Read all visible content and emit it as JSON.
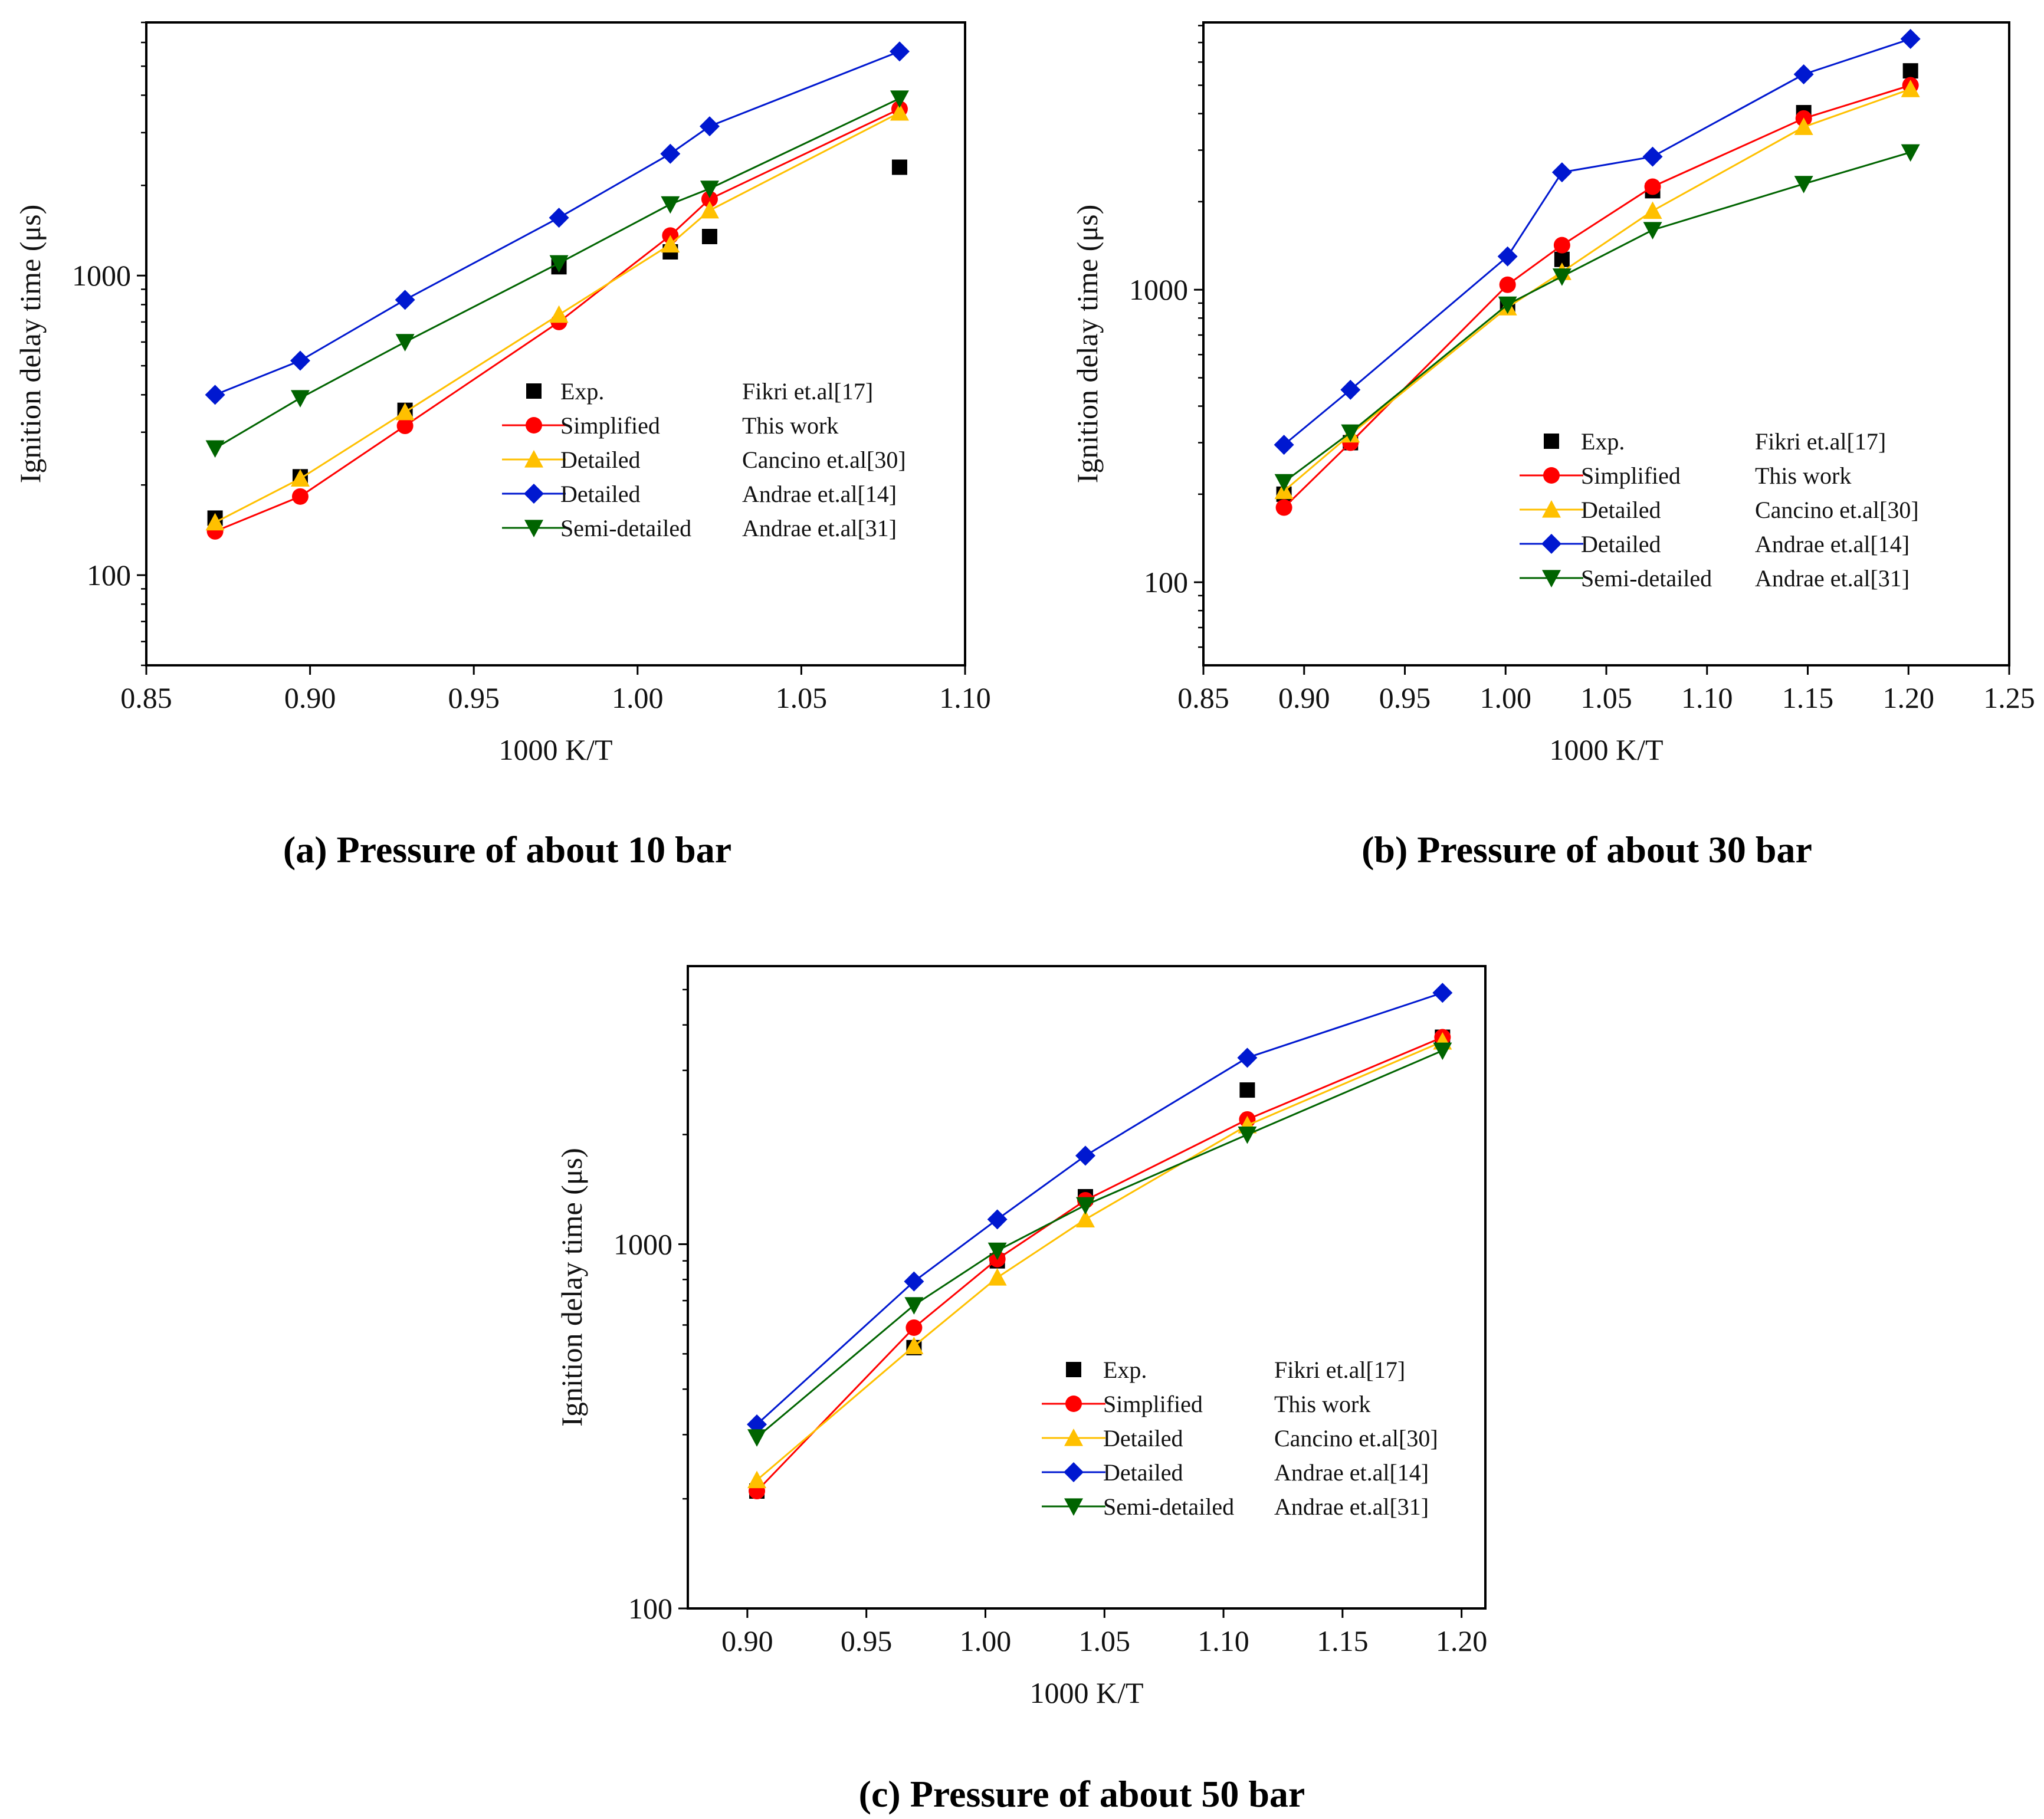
{
  "chart_data": [
    {
      "type": "line",
      "yscale": "log",
      "caption": "(a) Pressure of about 10 bar",
      "xlabel": "1000 K/T",
      "ylabel": "Ignition delay time (μs)",
      "xlim": [
        0.85,
        1.1
      ],
      "ylim": [
        50,
        7000
      ],
      "xticks": [
        "0.85",
        "0.90",
        "0.95",
        "1.00",
        "1.05",
        "1.10"
      ],
      "yticks": [
        "100",
        "1000"
      ],
      "series": [
        {
          "name": "Exp.",
          "source": "Fikri et.al[17]",
          "color": "#000000",
          "marker": "square",
          "line": false,
          "x": [
            0.871,
            0.897,
            0.929,
            0.976,
            1.01,
            1.022,
            1.08
          ],
          "y": [
            155,
            213,
            355,
            1070,
            1200,
            1350,
            2300
          ]
        },
        {
          "name": "Simplified",
          "source": "This work",
          "color": "#ff0000",
          "marker": "circle",
          "line": true,
          "x": [
            0.871,
            0.897,
            0.929,
            0.976,
            1.01,
            1.022,
            1.08
          ],
          "y": [
            140,
            183,
            315,
            700,
            1360,
            1800,
            3600
          ]
        },
        {
          "name": "Detailed",
          "source": "Cancino et.al[30]",
          "color": "#ffc000",
          "marker": "triangle-up",
          "line": true,
          "x": [
            0.871,
            0.897,
            0.929,
            0.976,
            1.01,
            1.022,
            1.08
          ],
          "y": [
            150,
            210,
            350,
            740,
            1270,
            1650,
            3500
          ]
        },
        {
          "name": "Detailed",
          "source": "Andrae et.al[14]",
          "color": "#0018d0",
          "marker": "diamond",
          "line": true,
          "x": [
            0.871,
            0.897,
            0.929,
            0.976,
            1.01,
            1.022,
            1.08
          ],
          "y": [
            400,
            520,
            830,
            1560,
            2550,
            3150,
            5600
          ]
        },
        {
          "name": "Semi-detailed",
          "source": "Andrae et.al[31]",
          "color": "#006400",
          "marker": "triangle-down",
          "line": true,
          "x": [
            0.871,
            0.897,
            0.929,
            0.976,
            1.01,
            1.022,
            1.08
          ],
          "y": [
            265,
            390,
            600,
            1100,
            1730,
            1950,
            3900
          ]
        }
      ]
    },
    {
      "type": "line",
      "yscale": "log",
      "caption": "(b) Pressure of about 30 bar",
      "xlabel": "1000 K/T",
      "ylabel": "Ignition delay time (μs)",
      "xlim": [
        0.85,
        1.25
      ],
      "ylim": [
        52,
        8200
      ],
      "xticks": [
        "0.85",
        "0.90",
        "0.95",
        "1.00",
        "1.05",
        "1.10",
        "1.15",
        "1.20",
        "1.25"
      ],
      "yticks": [
        "100",
        "1000"
      ],
      "series": [
        {
          "name": "Exp.",
          "source": "Fikri et.al[17]",
          "color": "#000000",
          "marker": "square",
          "line": false,
          "x": [
            0.89,
            0.923,
            1.001,
            1.028,
            1.073,
            1.148,
            1.201
          ],
          "y": [
            200,
            300,
            880,
            1270,
            2180,
            4030,
            5600
          ]
        },
        {
          "name": "Simplified",
          "source": "This work",
          "color": "#ff0000",
          "marker": "circle",
          "line": true,
          "x": [
            0.89,
            0.923,
            1.001,
            1.028,
            1.073,
            1.148,
            1.201
          ],
          "y": [
            180,
            300,
            1040,
            1420,
            2250,
            3850,
            5000
          ]
        },
        {
          "name": "Detailed",
          "source": "Cancino et.al[30]",
          "color": "#ffc000",
          "marker": "triangle-up",
          "line": true,
          "x": [
            0.89,
            0.923,
            1.001,
            1.028,
            1.073,
            1.148,
            1.201
          ],
          "y": [
            205,
            320,
            870,
            1150,
            1860,
            3600,
            4850
          ]
        },
        {
          "name": "Detailed",
          "source": "Andrae et.al[14]",
          "color": "#0018d0",
          "marker": "diamond",
          "line": true,
          "x": [
            0.89,
            0.923,
            1.001,
            1.028,
            1.073,
            1.148,
            1.201
          ],
          "y": [
            295,
            455,
            1300,
            2520,
            2850,
            5450,
            7200
          ]
        },
        {
          "name": "Semi-detailed",
          "source": "Andrae et.al[31]",
          "color": "#006400",
          "marker": "triangle-down",
          "line": true,
          "x": [
            0.89,
            0.923,
            1.001,
            1.028,
            1.073,
            1.148,
            1.201
          ],
          "y": [
            220,
            325,
            890,
            1110,
            1600,
            2300,
            2950
          ]
        }
      ]
    },
    {
      "type": "line",
      "yscale": "log",
      "caption": "(c) Pressure of about 50 bar",
      "xlabel": "1000 K/T",
      "ylabel": "Ignition delay time (μs)",
      "xlim": [
        0.875,
        1.21
      ],
      "ylim": [
        100,
        5800
      ],
      "xticks": [
        "0.90",
        "0.95",
        "1.00",
        "1.05",
        "1.10",
        "1.15",
        "1.20"
      ],
      "yticks": [
        "100",
        "1000"
      ],
      "series": [
        {
          "name": "Exp.",
          "source": "Fikri et.al[17]",
          "color": "#000000",
          "marker": "square",
          "line": false,
          "x": [
            0.904,
            0.97,
            1.005,
            1.042,
            1.11,
            1.192
          ],
          "y": [
            210,
            520,
            900,
            1350,
            2650,
            3700
          ]
        },
        {
          "name": "Simplified",
          "source": "This work",
          "color": "#ff0000",
          "marker": "circle",
          "line": true,
          "x": [
            0.904,
            0.97,
            1.005,
            1.042,
            1.11,
            1.192
          ],
          "y": [
            210,
            590,
            910,
            1320,
            2200,
            3700
          ]
        },
        {
          "name": "Detailed",
          "source": "Cancino et.al[30]",
          "color": "#ffc000",
          "marker": "triangle-up",
          "line": true,
          "x": [
            0.904,
            0.97,
            1.005,
            1.042,
            1.11,
            1.192
          ],
          "y": [
            225,
            525,
            810,
            1170,
            2120,
            3600
          ]
        },
        {
          "name": "Detailed",
          "source": "Andrae et.al[14]",
          "color": "#0018d0",
          "marker": "diamond",
          "line": true,
          "x": [
            0.904,
            0.97,
            1.005,
            1.042,
            1.11,
            1.192
          ],
          "y": [
            320,
            790,
            1170,
            1750,
            3250,
            4900
          ]
        },
        {
          "name": "Semi-detailed",
          "source": "Andrae et.al[31]",
          "color": "#006400",
          "marker": "triangle-down",
          "line": true,
          "x": [
            0.904,
            0.97,
            1.005,
            1.042,
            1.11,
            1.192
          ],
          "y": [
            295,
            680,
            960,
            1280,
            2000,
            3400
          ]
        }
      ]
    }
  ]
}
